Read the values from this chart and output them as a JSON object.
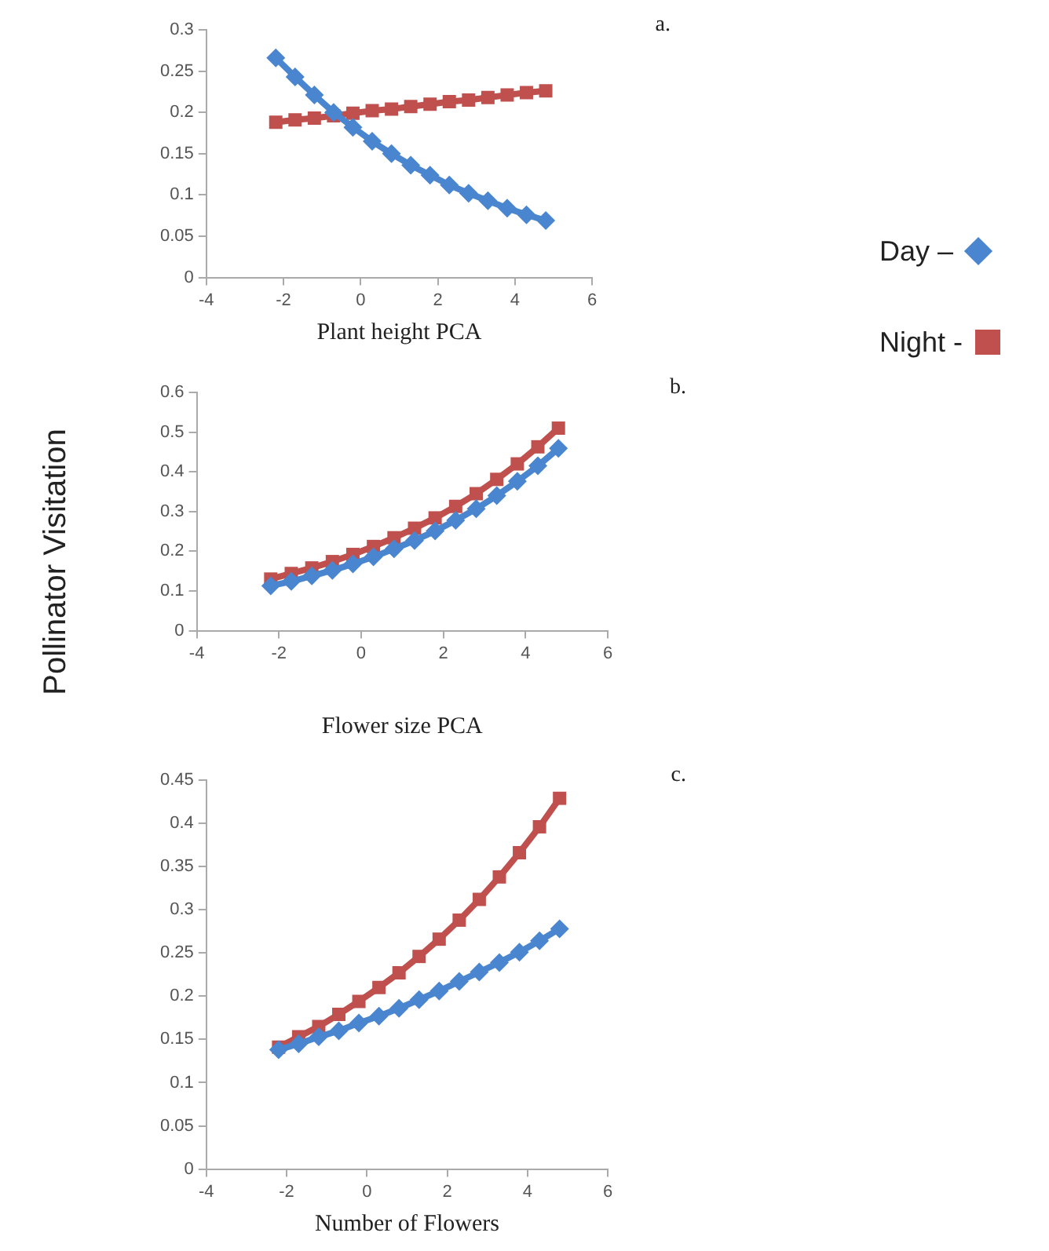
{
  "chart_data": [
    {
      "type": "line",
      "xlabel": "Plant height PCA",
      "annotations": [
        "a."
      ],
      "legend": "right",
      "xlim": [
        -4,
        6
      ],
      "xticks": [
        -4,
        -2,
        0,
        2,
        4,
        6
      ],
      "ylim": [
        0,
        0.3
      ],
      "yticks": [
        0,
        0.05,
        0.1,
        0.15,
        0.2,
        0.25,
        0.3
      ],
      "x": [
        -2.2,
        -1.7,
        -1.2,
        -0.7,
        -0.2,
        0.3,
        0.8,
        1.3,
        1.8,
        2.3,
        2.8,
        3.3,
        3.8,
        4.3,
        4.8
      ],
      "series": [
        {
          "name": "Day –",
          "color": "#4a86cf",
          "marker": "diamond",
          "values": [
            0.266,
            0.243,
            0.221,
            0.2,
            0.182,
            0.165,
            0.15,
            0.136,
            0.124,
            0.112,
            0.102,
            0.093,
            0.084,
            0.076,
            0.069
          ]
        },
        {
          "name": "Night -",
          "color": "#c0504d",
          "marker": "square",
          "values": [
            0.188,
            0.191,
            0.193,
            0.196,
            0.199,
            0.202,
            0.204,
            0.207,
            0.21,
            0.213,
            0.215,
            0.218,
            0.221,
            0.224,
            0.226
          ]
        }
      ]
    },
    {
      "type": "line",
      "xlabel": "Flower size PCA",
      "ylabel": "Pollinator Visitation",
      "annotations": [
        "b."
      ],
      "xlim": [
        -4,
        6
      ],
      "xticks": [
        -4,
        -2,
        0,
        2,
        4,
        6
      ],
      "ylim": [
        0,
        0.6
      ],
      "yticks": [
        0,
        0.1,
        0.2,
        0.3,
        0.4,
        0.5,
        0.6
      ],
      "x": [
        -2.2,
        -1.7,
        -1.2,
        -0.7,
        -0.2,
        0.3,
        0.8,
        1.3,
        1.8,
        2.3,
        2.8,
        3.3,
        3.8,
        4.3,
        4.8
      ],
      "series": [
        {
          "color": "#4a86cf",
          "marker": "diamond",
          "values": [
            0.113,
            0.124,
            0.138,
            0.152,
            0.168,
            0.186,
            0.206,
            0.227,
            0.251,
            0.278,
            0.307,
            0.34,
            0.376,
            0.415,
            0.459
          ]
        },
        {
          "color": "#c0504d",
          "marker": "square",
          "values": [
            0.13,
            0.144,
            0.158,
            0.174,
            0.192,
            0.212,
            0.234,
            0.258,
            0.284,
            0.313,
            0.345,
            0.381,
            0.42,
            0.463,
            0.51
          ]
        }
      ]
    },
    {
      "type": "line",
      "xlabel": "Number of Flowers",
      "annotations": [
        "c."
      ],
      "xlim": [
        -4,
        6
      ],
      "xticks": [
        -4,
        -2,
        0,
        2,
        4,
        6
      ],
      "ylim": [
        0,
        0.45
      ],
      "yticks": [
        0,
        0.05,
        0.1,
        0.15,
        0.2,
        0.25,
        0.3,
        0.35,
        0.4,
        0.45
      ],
      "x": [
        -2.2,
        -1.7,
        -1.2,
        -0.7,
        -0.2,
        0.3,
        0.8,
        1.3,
        1.8,
        2.3,
        2.8,
        3.3,
        3.8,
        4.3,
        4.8
      ],
      "series": [
        {
          "color": "#4a86cf",
          "marker": "diamond",
          "values": [
            0.138,
            0.145,
            0.153,
            0.16,
            0.169,
            0.177,
            0.186,
            0.196,
            0.206,
            0.217,
            0.228,
            0.239,
            0.251,
            0.264,
            0.278
          ]
        },
        {
          "color": "#c0504d",
          "marker": "square",
          "values": [
            0.141,
            0.153,
            0.165,
            0.179,
            0.194,
            0.21,
            0.227,
            0.246,
            0.266,
            0.288,
            0.312,
            0.338,
            0.366,
            0.396,
            0.429
          ]
        }
      ]
    }
  ]
}
